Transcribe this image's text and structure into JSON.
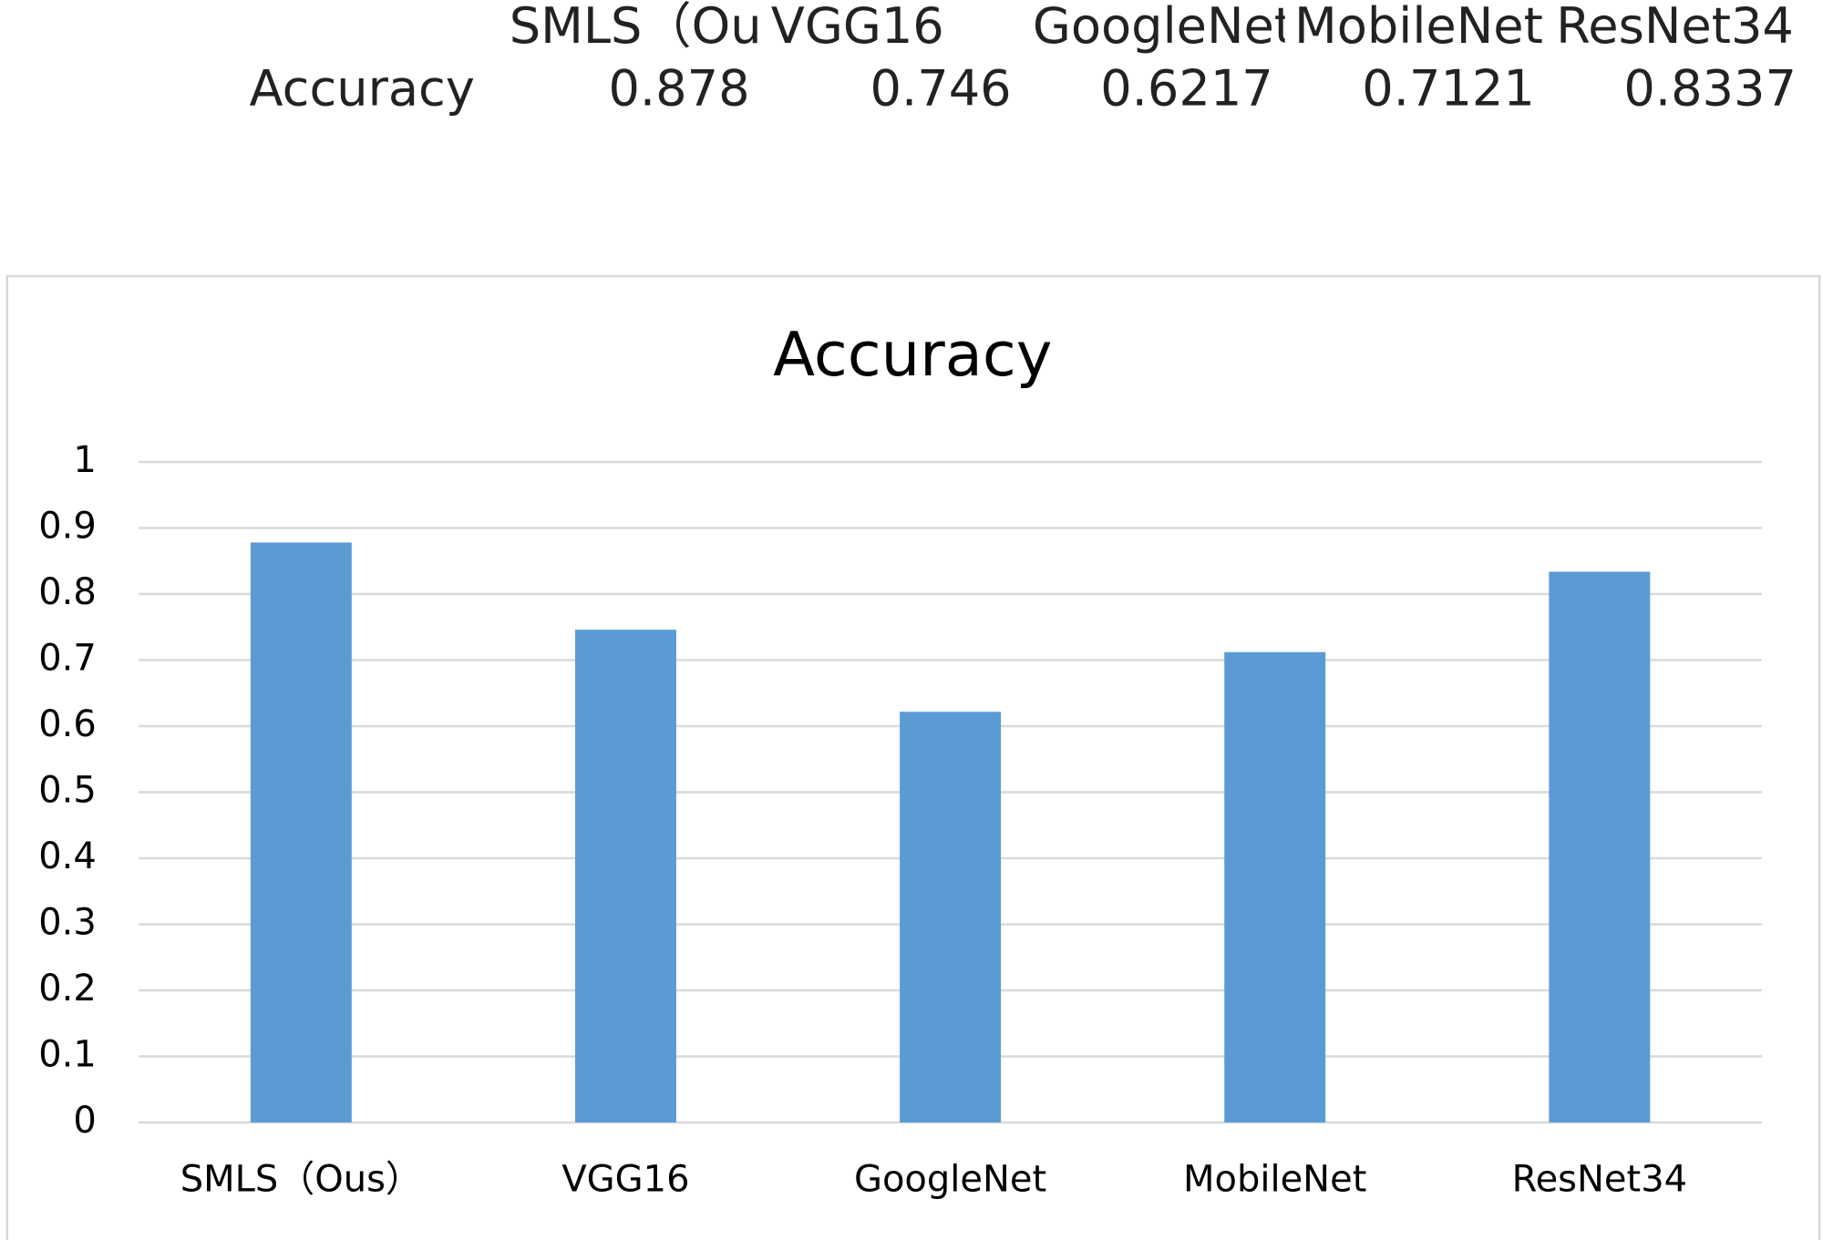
{
  "table": {
    "row_label": "Accuracy"
  },
  "chart_data": {
    "type": "bar",
    "title": "Accuracy",
    "categories": [
      "SMLS（Ous）",
      "VGG16",
      "GoogleNet",
      "MobileNet",
      "ResNet34"
    ],
    "values": [
      0.878,
      0.746,
      0.6217,
      0.7121,
      0.8337
    ],
    "color": "#5b9bd5",
    "ylim": [
      0,
      1
    ],
    "yticks": [
      0,
      0.1,
      0.2,
      0.3,
      0.4,
      0.5,
      0.6,
      0.7,
      0.8,
      0.9,
      1
    ],
    "grid": true
  }
}
